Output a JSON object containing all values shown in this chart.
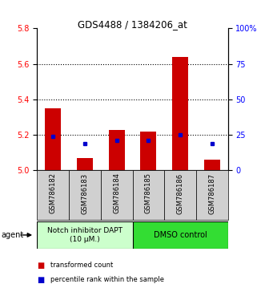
{
  "title": "GDS4488 / 1384206_at",
  "samples": [
    "GSM786182",
    "GSM786183",
    "GSM786184",
    "GSM786185",
    "GSM786186",
    "GSM786187"
  ],
  "red_values": [
    5.35,
    5.07,
    5.23,
    5.22,
    5.64,
    5.06
  ],
  "blue_values": [
    5.19,
    5.15,
    5.17,
    5.17,
    5.2,
    5.15
  ],
  "ylim_left": [
    5.0,
    5.8
  ],
  "ylim_right": [
    0,
    100
  ],
  "yticks_left": [
    5.0,
    5.2,
    5.4,
    5.6,
    5.8
  ],
  "yticks_right": [
    0,
    25,
    50,
    75,
    100
  ],
  "ytick_labels_right": [
    "0",
    "25",
    "50",
    "75",
    "100%"
  ],
  "bar_color": "#cc0000",
  "dot_color": "#0000cc",
  "group1_label": "Notch inhibitor DAPT\n(10 μM.)",
  "group2_label": "DMSO control",
  "group1_bg": "#ccffcc",
  "group2_bg": "#33dd33",
  "agent_label": "agent",
  "legend1": "transformed count",
  "legend2": "percentile rank within the sample",
  "bar_width": 0.5,
  "baseline": 5.0,
  "grid_lines": [
    5.2,
    5.4,
    5.6
  ],
  "xlabel_bg": "#d0d0d0"
}
